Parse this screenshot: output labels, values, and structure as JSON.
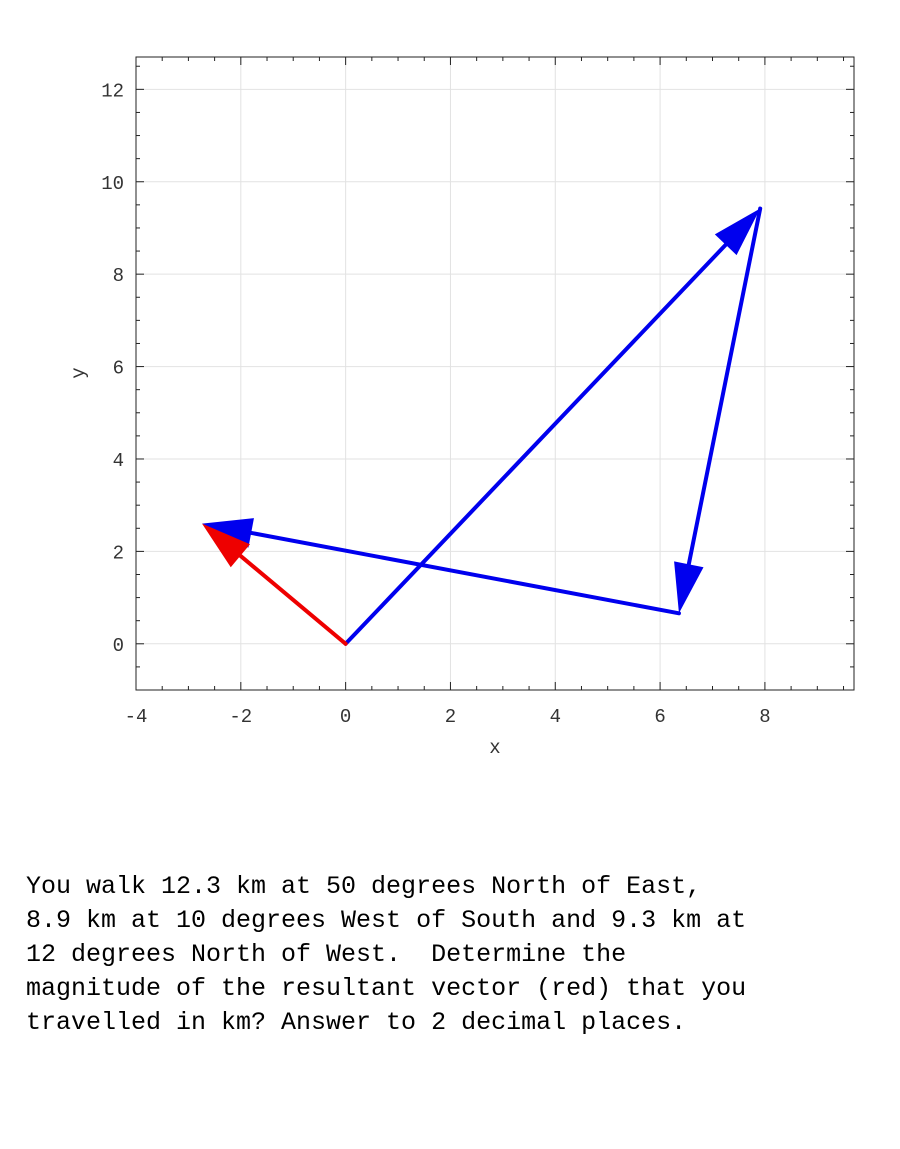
{
  "chart_data": {
    "type": "vector",
    "xlabel": "x",
    "ylabel": "y",
    "xlim": [
      -4,
      9.7
    ],
    "ylim": [
      -1,
      12.7
    ],
    "xticks": [
      -4,
      -2,
      0,
      2,
      4,
      6,
      8
    ],
    "yticks": [
      0,
      2,
      4,
      6,
      8,
      10,
      12
    ],
    "grid": true,
    "vectors": [
      {
        "from": [
          0,
          0
        ],
        "to": [
          7.91,
          9.42
        ],
        "color": "#0000ee"
      },
      {
        "from": [
          7.91,
          9.42
        ],
        "to": [
          6.36,
          0.66
        ],
        "color": "#0000ee"
      },
      {
        "from": [
          6.36,
          0.66
        ],
        "to": [
          -2.74,
          2.6
        ],
        "color": "#0000ee"
      },
      {
        "from": [
          0,
          0
        ],
        "to": [
          -2.74,
          2.6
        ],
        "color": "#ee0000"
      }
    ]
  },
  "question": {
    "text": "You walk 12.3 km at 50 degrees North of East,\n8.9 km at 10 degrees West of South and 9.3 km at\n12 degrees North of West.  Determine the\nmagnitude of the resultant vector (red) that you\ntravelled in km? Answer to 2 decimal places."
  }
}
